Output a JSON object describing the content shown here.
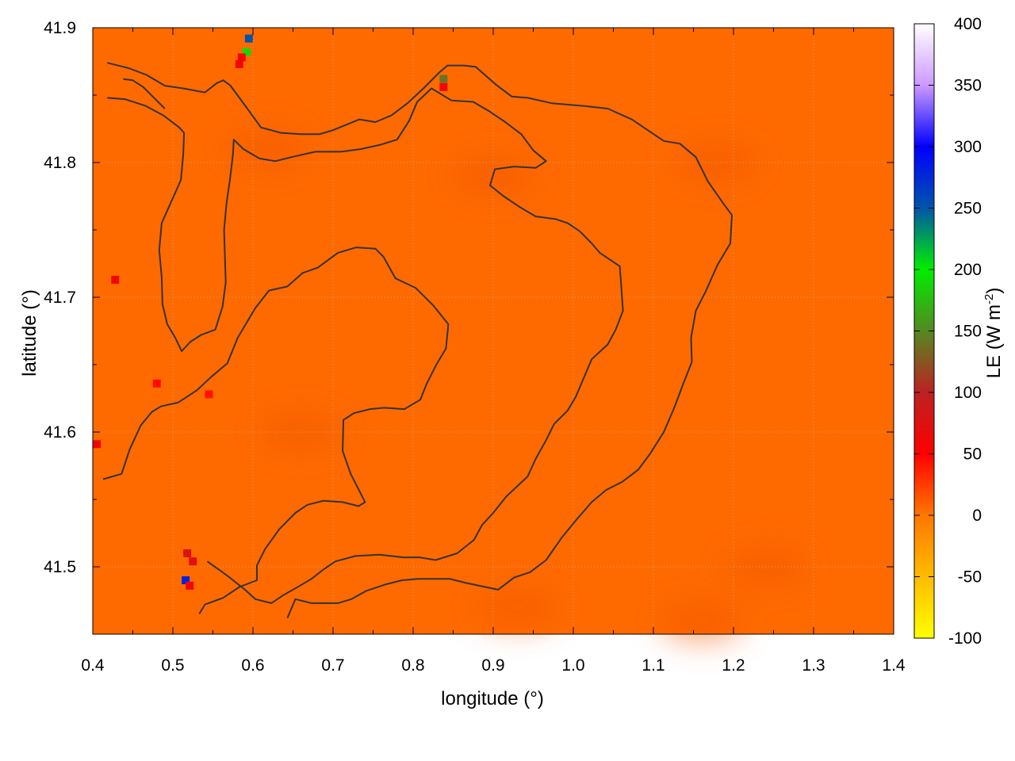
{
  "chart_data": {
    "type": "heatmap",
    "title": "",
    "xlabel": "longitude (°)",
    "ylabel": "latitude (°)",
    "xlim": [
      0.4,
      1.4
    ],
    "ylim": [
      41.45,
      41.9
    ],
    "x_ticks": [
      "0.4",
      "0.5",
      "0.6",
      "0.7",
      "0.8",
      "0.9",
      "1.0",
      "1.1",
      "1.2",
      "1.3",
      "1.4"
    ],
    "y_ticks": [
      "41.5",
      "41.6",
      "41.7",
      "41.8",
      "41.9"
    ],
    "grid": true,
    "colorbar": {
      "label": "LE (W m⁻²)",
      "label_main": "LE (W m",
      "label_sup": "-2",
      "label_end": ")",
      "range": [
        -100,
        400
      ],
      "ticks": [
        "-100",
        "-50",
        "0",
        "50",
        "100",
        "150",
        "200",
        "250",
        "300",
        "350",
        "400"
      ],
      "stops": [
        {
          "value": -100,
          "color": "#ffff00"
        },
        {
          "value": -50,
          "color": "#ffbb00"
        },
        {
          "value": 0,
          "color": "#ff7700"
        },
        {
          "value": 50,
          "color": "#ff0000"
        },
        {
          "value": 100,
          "color": "#bb2222"
        },
        {
          "value": 150,
          "color": "#558822"
        },
        {
          "value": 200,
          "color": "#00ee00"
        },
        {
          "value": 250,
          "color": "#0055aa"
        },
        {
          "value": 300,
          "color": "#0000ff"
        },
        {
          "value": 350,
          "color": "#cc99ff"
        },
        {
          "value": 400,
          "color": "#ffffff"
        }
      ]
    },
    "field": {
      "background_value": 12,
      "background_color": "#ff6a00",
      "patches": [
        {
          "lon": 0.595,
          "lat": 41.892,
          "value": 250
        },
        {
          "lon": 0.592,
          "lat": 41.882,
          "value": 190
        },
        {
          "lon": 0.586,
          "lat": 41.878,
          "value": 55
        },
        {
          "lon": 0.583,
          "lat": 41.873,
          "value": 60
        },
        {
          "lon": 0.838,
          "lat": 41.862,
          "value": 140
        },
        {
          "lon": 0.838,
          "lat": 41.856,
          "value": 60
        },
        {
          "lon": 0.428,
          "lat": 41.713,
          "value": 60
        },
        {
          "lon": 0.405,
          "lat": 41.591,
          "value": 60
        },
        {
          "lon": 0.518,
          "lat": 41.51,
          "value": 75
        },
        {
          "lon": 0.525,
          "lat": 41.504,
          "value": 70
        },
        {
          "lon": 0.516,
          "lat": 41.49,
          "value": 280
        },
        {
          "lon": 0.521,
          "lat": 41.486,
          "value": 60
        },
        {
          "lon": 0.48,
          "lat": 41.636,
          "value": 45
        },
        {
          "lon": 0.545,
          "lat": 41.628,
          "value": 42
        }
      ]
    },
    "contours": [
      [
        [
          0.418,
          41.874
        ],
        [
          0.445,
          41.87
        ],
        [
          0.467,
          41.865
        ],
        [
          0.49,
          41.857
        ],
        [
          0.513,
          41.855
        ],
        [
          0.54,
          41.852
        ],
        [
          0.555,
          41.859
        ],
        [
          0.563,
          41.861
        ],
        [
          0.572,
          41.857
        ],
        [
          0.593,
          41.84
        ],
        [
          0.61,
          41.826
        ],
        [
          0.635,
          41.822
        ],
        [
          0.66,
          41.821
        ],
        [
          0.683,
          41.821
        ],
        [
          0.7,
          41.824
        ],
        [
          0.733,
          41.832
        ],
        [
          0.753,
          41.83
        ],
        [
          0.773,
          41.835
        ],
        [
          0.793,
          41.844
        ],
        [
          0.813,
          41.855
        ],
        [
          0.833,
          41.867
        ],
        [
          0.843,
          41.872
        ],
        [
          0.863,
          41.872
        ],
        [
          0.878,
          41.871
        ],
        [
          0.903,
          41.858
        ],
        [
          0.923,
          41.849
        ],
        [
          0.943,
          41.848
        ],
        [
          0.973,
          41.844
        ],
        [
          1.013,
          41.842
        ],
        [
          1.043,
          41.84
        ],
        [
          1.073,
          41.832
        ],
        [
          1.093,
          41.824
        ],
        [
          1.113,
          41.816
        ],
        [
          1.133,
          41.814
        ],
        [
          1.153,
          41.804
        ],
        [
          1.168,
          41.786
        ],
        [
          1.188,
          41.769
        ],
        [
          1.198,
          41.761
        ],
        [
          1.196,
          41.74
        ],
        [
          1.18,
          41.724
        ],
        [
          1.165,
          41.704
        ],
        [
          1.153,
          41.69
        ],
        [
          1.147,
          41.67
        ],
        [
          1.148,
          41.652
        ],
        [
          1.138,
          41.637
        ],
        [
          1.126,
          41.618
        ],
        [
          1.113,
          41.6
        ],
        [
          1.096,
          41.584
        ],
        [
          1.081,
          41.572
        ],
        [
          1.061,
          41.563
        ],
        [
          1.041,
          41.557
        ],
        [
          1.023,
          41.548
        ],
        [
          1.004,
          41.535
        ],
        [
          0.986,
          41.522
        ],
        [
          0.966,
          41.505
        ],
        [
          0.946,
          41.496
        ],
        [
          0.926,
          41.492
        ],
        [
          0.906,
          41.483
        ],
        [
          0.866,
          41.488
        ],
        [
          0.846,
          41.491
        ],
        [
          0.826,
          41.491
        ],
        [
          0.806,
          41.491
        ],
        [
          0.786,
          41.49
        ],
        [
          0.766,
          41.487
        ],
        [
          0.741,
          41.482
        ],
        [
          0.723,
          41.476
        ],
        [
          0.706,
          41.473
        ],
        [
          0.693,
          41.473
        ],
        [
          0.673,
          41.473
        ],
        [
          0.653,
          41.476
        ],
        [
          0.643,
          41.462
        ]
      ],
      [
        [
          0.418,
          41.848
        ],
        [
          0.44,
          41.847
        ],
        [
          0.466,
          41.842
        ],
        [
          0.488,
          41.835
        ],
        [
          0.508,
          41.826
        ],
        [
          0.514,
          41.822
        ],
        [
          0.513,
          41.806
        ],
        [
          0.51,
          41.787
        ],
        [
          0.498,
          41.771
        ],
        [
          0.486,
          41.755
        ],
        [
          0.483,
          41.735
        ],
        [
          0.486,
          41.715
        ],
        [
          0.487,
          41.695
        ],
        [
          0.493,
          41.68
        ],
        [
          0.503,
          41.67
        ],
        [
          0.511,
          41.66
        ],
        [
          0.522,
          41.667
        ],
        [
          0.535,
          41.672
        ],
        [
          0.553,
          41.676
        ],
        [
          0.562,
          41.693
        ],
        [
          0.566,
          41.711
        ],
        [
          0.565,
          41.731
        ],
        [
          0.564,
          41.75
        ],
        [
          0.567,
          41.77
        ],
        [
          0.571,
          41.786
        ],
        [
          0.575,
          41.806
        ],
        [
          0.576,
          41.817
        ],
        [
          0.588,
          41.81
        ],
        [
          0.608,
          41.803
        ],
        [
          0.628,
          41.801
        ],
        [
          0.648,
          41.804
        ],
        [
          0.678,
          41.808
        ],
        [
          0.71,
          41.808
        ],
        [
          0.735,
          41.81
        ],
        [
          0.758,
          41.813
        ],
        [
          0.78,
          41.817
        ],
        [
          0.795,
          41.831
        ],
        [
          0.805,
          41.845
        ],
        [
          0.823,
          41.855
        ],
        [
          0.848,
          41.846
        ],
        [
          0.875,
          41.845
        ],
        [
          0.895,
          41.838
        ],
        [
          0.915,
          41.83
        ],
        [
          0.935,
          41.821
        ],
        [
          0.95,
          41.809
        ],
        [
          0.966,
          41.801
        ],
        [
          0.953,
          41.796
        ],
        [
          0.926,
          41.797
        ],
        [
          0.902,
          41.795
        ],
        [
          0.896,
          41.783
        ],
        [
          0.913,
          41.775
        ],
        [
          0.933,
          41.767
        ],
        [
          0.953,
          41.76
        ],
        [
          0.978,
          41.758
        ],
        [
          0.993,
          41.755
        ],
        [
          1.008,
          41.749
        ],
        [
          1.023,
          41.74
        ],
        [
          1.033,
          41.733
        ],
        [
          1.048,
          41.727
        ],
        [
          1.058,
          41.723
        ],
        [
          1.06,
          41.707
        ],
        [
          1.062,
          41.69
        ],
        [
          1.053,
          41.676
        ],
        [
          1.043,
          41.665
        ],
        [
          1.023,
          41.654
        ],
        [
          1.013,
          41.64
        ],
        [
          1.003,
          41.626
        ],
        [
          0.993,
          41.616
        ],
        [
          0.976,
          41.606
        ],
        [
          0.966,
          41.594
        ],
        [
          0.953,
          41.58
        ],
        [
          0.943,
          41.567
        ],
        [
          0.916,
          41.552
        ],
        [
          0.9,
          41.54
        ],
        [
          0.886,
          41.531
        ],
        [
          0.876,
          41.52
        ],
        [
          0.855,
          41.51
        ],
        [
          0.828,
          41.505
        ],
        [
          0.808,
          41.507
        ],
        [
          0.788,
          41.507
        ],
        [
          0.758,
          41.509
        ],
        [
          0.728,
          41.508
        ],
        [
          0.703,
          41.504
        ],
        [
          0.688,
          41.498
        ],
        [
          0.673,
          41.491
        ],
        [
          0.653,
          41.484
        ],
        [
          0.638,
          41.479
        ],
        [
          0.623,
          41.473
        ],
        [
          0.603,
          41.476
        ],
        [
          0.59,
          41.483
        ],
        [
          0.571,
          41.492
        ],
        [
          0.562,
          41.496
        ],
        [
          0.543,
          41.504
        ]
      ],
      [
        [
          0.438,
          41.862
        ],
        [
          0.45,
          41.861
        ],
        [
          0.463,
          41.856
        ],
        [
          0.478,
          41.847
        ],
        [
          0.49,
          41.84
        ]
      ],
      [
        [
          0.413,
          41.565
        ],
        [
          0.436,
          41.569
        ],
        [
          0.446,
          41.587
        ],
        [
          0.46,
          41.605
        ],
        [
          0.474,
          41.615
        ],
        [
          0.485,
          41.619
        ],
        [
          0.507,
          41.622
        ],
        [
          0.53,
          41.631
        ],
        [
          0.548,
          41.641
        ],
        [
          0.568,
          41.651
        ],
        [
          0.581,
          41.67
        ],
        [
          0.603,
          41.692
        ],
        [
          0.62,
          41.705
        ],
        [
          0.643,
          41.708
        ],
        [
          0.662,
          41.718
        ],
        [
          0.681,
          41.722
        ],
        [
          0.706,
          41.733
        ],
        [
          0.729,
          41.737
        ],
        [
          0.753,
          41.736
        ],
        [
          0.763,
          41.73
        ],
        [
          0.778,
          41.714
        ],
        [
          0.803,
          41.707
        ],
        [
          0.825,
          41.694
        ],
        [
          0.844,
          41.68
        ],
        [
          0.841,
          41.662
        ],
        [
          0.829,
          41.65
        ],
        [
          0.817,
          41.636
        ],
        [
          0.809,
          41.624
        ],
        [
          0.789,
          41.617
        ],
        [
          0.764,
          41.618
        ],
        [
          0.746,
          41.617
        ],
        [
          0.726,
          41.614
        ],
        [
          0.713,
          41.609
        ],
        [
          0.712,
          41.586
        ],
        [
          0.722,
          41.569
        ],
        [
          0.74,
          41.548
        ],
        [
          0.732,
          41.545
        ],
        [
          0.712,
          41.548
        ],
        [
          0.688,
          41.549
        ],
        [
          0.668,
          41.546
        ],
        [
          0.653,
          41.54
        ],
        [
          0.633,
          41.528
        ],
        [
          0.615,
          41.513
        ],
        [
          0.605,
          41.501
        ],
        [
          0.605,
          41.49
        ],
        [
          0.583,
          41.485
        ],
        [
          0.563,
          41.477
        ],
        [
          0.54,
          41.472
        ],
        [
          0.533,
          41.465
        ]
      ]
    ]
  }
}
